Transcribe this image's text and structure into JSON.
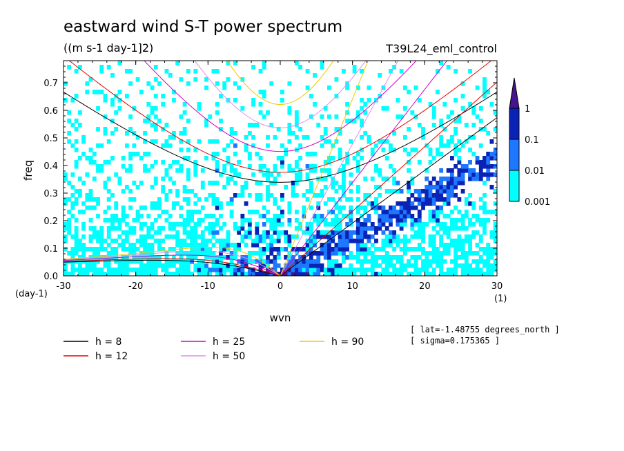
{
  "chart_data": {
    "type": "heatmap",
    "title": "eastward wind S-T power spectrum",
    "units": "((m s-1 day-1]2)",
    "run_label": "T39L24_eml_control",
    "xlabel": "wvn",
    "ylabel": "freq",
    "x_unit": "(1)",
    "y_unit": "(day-1)",
    "xlim": [
      -30,
      30
    ],
    "ylim": [
      0,
      0.78
    ],
    "x_ticks": [
      -30,
      -20,
      -10,
      0,
      10,
      20,
      30
    ],
    "x_tick_labels": [
      "-30",
      "-20",
      "-10",
      "0",
      "10",
      "20",
      "30"
    ],
    "y_ticks": [
      0,
      0.1,
      0.2,
      0.3,
      0.4,
      0.5,
      0.6,
      0.7
    ],
    "y_tick_labels": [
      "0.0",
      "0.1",
      "0.2",
      "0.3",
      "0.4",
      "0.5",
      "0.6",
      "0.7"
    ],
    "contour_levels": [
      0.001,
      0.01,
      0.1,
      1
    ],
    "colorbar_labels": [
      "0.001",
      "0.01",
      "0.1",
      "1"
    ],
    "shading_colors": [
      "#ffffff",
      "#00ffff",
      "#1e78ff",
      "#0a23b4",
      "#46148c"
    ],
    "dispersion_curves": [
      {
        "name": "h =  8",
        "h": 8,
        "color": "#000000"
      },
      {
        "name": "h = 12",
        "h": 12,
        "color": "#e60000"
      },
      {
        "name": "h = 25",
        "h": 25,
        "color": "#d200c8"
      },
      {
        "name": "h = 50",
        "h": 50,
        "color": "#e18cf0"
      },
      {
        "name": "h = 90",
        "h": 90,
        "color": "#f0c800"
      }
    ],
    "annotations": [
      "[ lat=-1.48755 degrees_north ]",
      "[ sigma=0.175365 ]"
    ],
    "legend_placement": "bottom",
    "grid": false
  }
}
